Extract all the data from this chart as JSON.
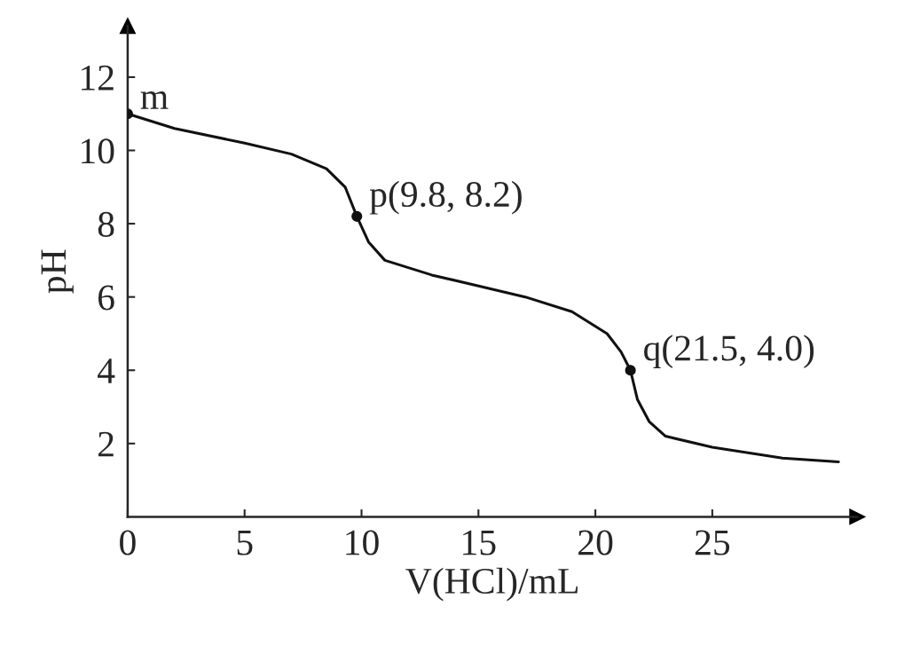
{
  "chart_data": {
    "type": "line",
    "xlabel": "V(HCl)/mL",
    "ylabel": "pH",
    "xlim": [
      0,
      31.2
    ],
    "ylim": [
      0,
      13.4
    ],
    "xticks": [
      0,
      5,
      10,
      15,
      20,
      25
    ],
    "yticks": [
      2,
      4,
      6,
      8,
      10,
      12
    ],
    "series": [
      {
        "color": "#111111",
        "marker": "none",
        "line_style": "solid",
        "x": [
          0,
          2,
          5,
          7,
          8.5,
          9.3,
          9.8,
          10.3,
          11,
          13,
          15,
          17,
          19,
          20.5,
          21.1,
          21.5,
          21.8,
          22.3,
          23,
          25,
          28,
          30.4
        ],
        "values": [
          11.0,
          10.6,
          10.2,
          9.9,
          9.5,
          9.0,
          8.2,
          7.5,
          7.0,
          6.6,
          6.3,
          6.0,
          5.6,
          5.0,
          4.5,
          4.0,
          3.2,
          2.6,
          2.2,
          1.9,
          1.6,
          1.5
        ]
      },
      {
        "type": "scatter",
        "color": "#111111",
        "marker": "circle",
        "x": [
          0,
          9.8,
          21.5
        ],
        "values": [
          11.0,
          8.2,
          4.0
        ]
      }
    ],
    "annotations": [
      {
        "text": "m",
        "x": 0,
        "y": 11.0
      },
      {
        "text": "p(9.8, 8.2)",
        "x": 9.8,
        "y": 8.2
      },
      {
        "text": "q(21.5, 4.0)",
        "x": 21.5,
        "y": 4.0
      }
    ]
  }
}
